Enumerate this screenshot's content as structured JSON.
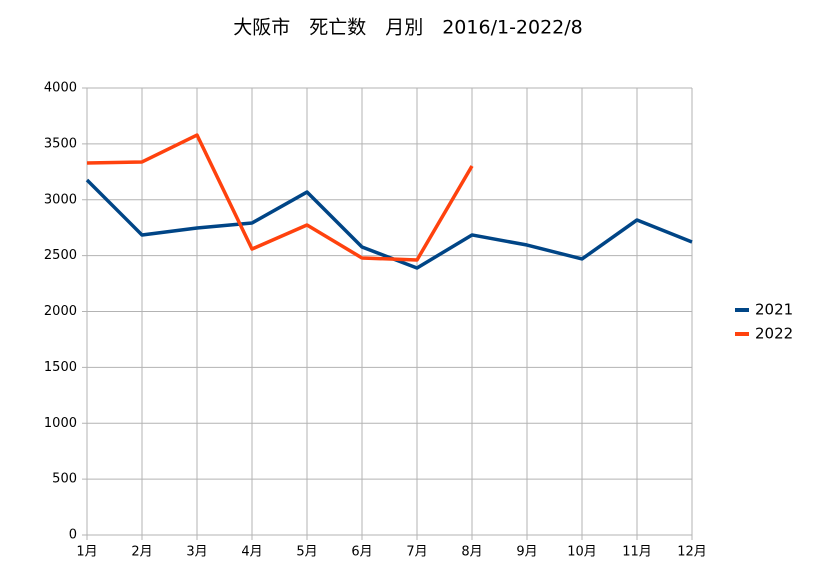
{
  "chart_data": {
    "type": "line",
    "title": "大阪市　死亡数　月別　2016/1-2022/8",
    "categories": [
      "1月",
      "2月",
      "3月",
      "4月",
      "5月",
      "6月",
      "7月",
      "8月",
      "9月",
      "10月",
      "11月",
      "12月"
    ],
    "series": [
      {
        "name": "2021",
        "color": "#004586",
        "values": [
          3177,
          2685,
          2747,
          2792,
          3069,
          2577,
          2389,
          2685,
          2595,
          2470,
          2819,
          2622
        ]
      },
      {
        "name": "2022",
        "color": "#ff420e",
        "values": [
          3329,
          3338,
          3579,
          2559,
          2774,
          2479,
          2461,
          3302,
          null,
          null,
          null,
          null
        ]
      }
    ],
    "ylim": [
      0,
      4000
    ],
    "yticks": [
      0,
      500,
      1000,
      1500,
      2000,
      2500,
      3000,
      3500,
      4000
    ],
    "grid": true,
    "legend": "right"
  }
}
